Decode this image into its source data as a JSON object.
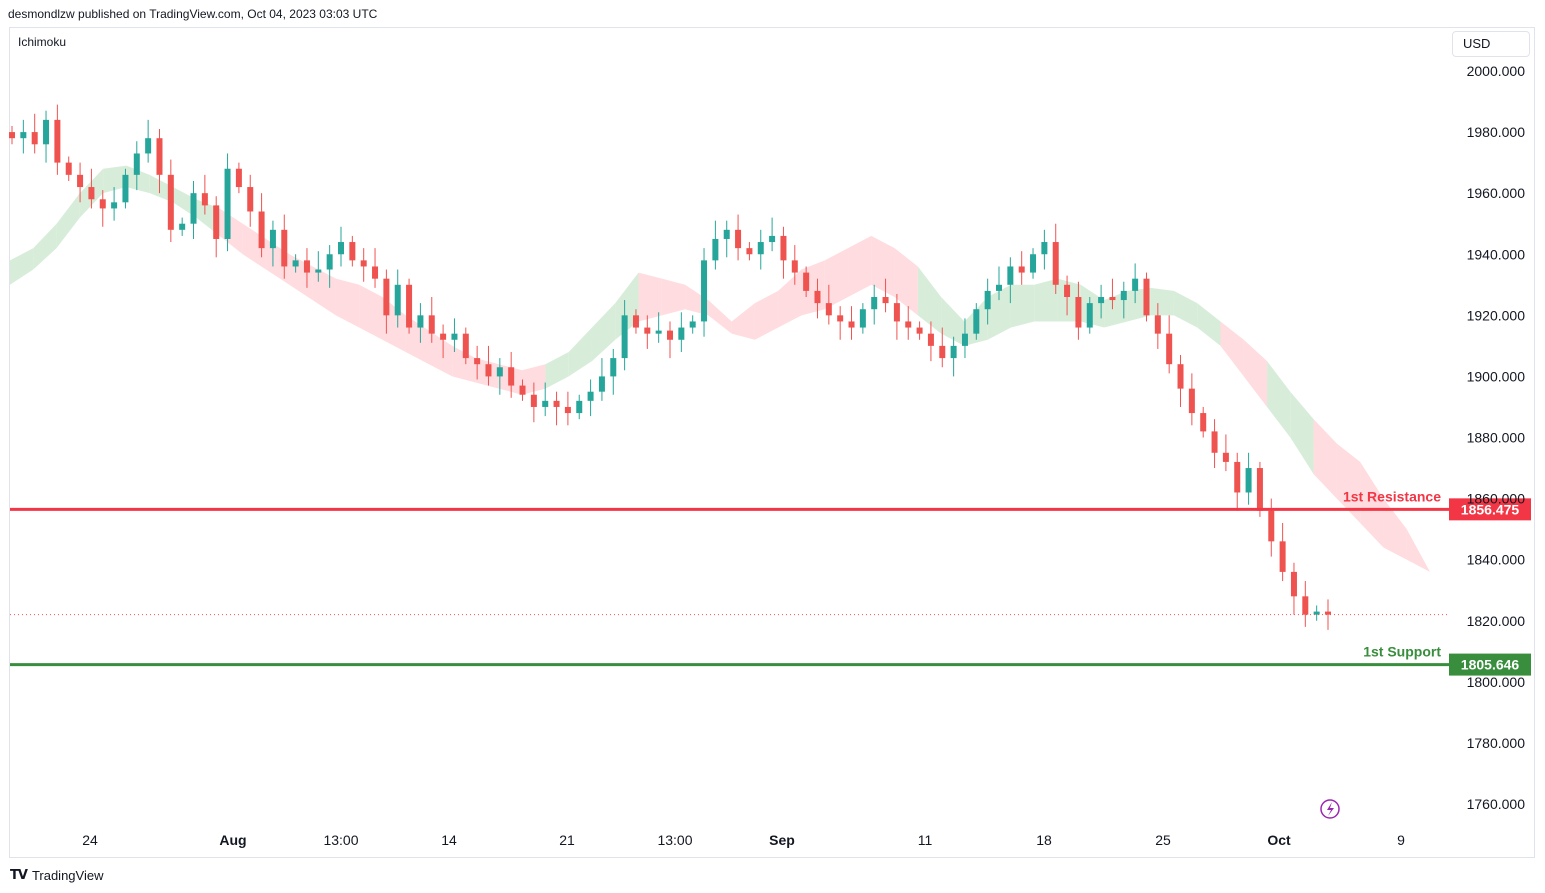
{
  "header": {
    "publisher": "desmondlzw published on TradingView.com, Oct 04, 2023 03:03 UTC"
  },
  "indicator_label": "Ichimoku",
  "currency": "USD",
  "footer": {
    "brand": "TradingView"
  },
  "colors": {
    "up": "#26a69a",
    "down": "#ef5350",
    "resistance": "#f23645",
    "support": "#388e3c",
    "cloud_bull": "#c8e6c9",
    "cloud_bear": "#ffcdd2"
  },
  "chart_data": {
    "type": "candlestick",
    "ylim": [
      1752,
      2012
    ],
    "yticks": [
      2000,
      1980,
      1960,
      1940,
      1920,
      1900,
      1880,
      1860,
      1840,
      1820,
      1800,
      1780,
      1760
    ],
    "ytick_labels": [
      "2000.000",
      "1980.000",
      "1960.000",
      "1940.000",
      "1920.000",
      "1900.000",
      "1880.000",
      "1860.000",
      "1840.000",
      "1820.000",
      "1800.000",
      "1780.000",
      "1760.000"
    ],
    "xtick_labels": [
      {
        "label": "24",
        "bold": false
      },
      {
        "label": "Aug",
        "bold": true
      },
      {
        "label": "13:00",
        "bold": false
      },
      {
        "label": "14",
        "bold": false
      },
      {
        "label": "21",
        "bold": false
      },
      {
        "label": "13:00",
        "bold": false
      },
      {
        "label": "Sep",
        "bold": true
      },
      {
        "label": "11",
        "bold": false
      },
      {
        "label": "18",
        "bold": false
      },
      {
        "label": "25",
        "bold": false
      },
      {
        "label": "Oct",
        "bold": true
      },
      {
        "label": "9",
        "bold": false
      }
    ],
    "close_path": [
      1978,
      1980,
      1976,
      1984,
      1970,
      1966,
      1962,
      1958,
      1955,
      1957,
      1966,
      1973,
      1978,
      1966,
      1948,
      1950,
      1960,
      1956,
      1945,
      1968,
      1962,
      1954,
      1942,
      1948,
      1936,
      1938,
      1934,
      1935,
      1940,
      1944,
      1938,
      1936,
      1932,
      1920,
      1930,
      1916,
      1920,
      1914,
      1912,
      1914,
      1906,
      1904,
      1900,
      1903,
      1897,
      1894,
      1890,
      1892,
      1890,
      1888,
      1892,
      1895,
      1900,
      1906,
      1920,
      1916,
      1914,
      1915,
      1912,
      1916,
      1918,
      1938,
      1945,
      1948,
      1942,
      1940,
      1944,
      1946,
      1938,
      1934,
      1928,
      1924,
      1920,
      1918,
      1916,
      1922,
      1926,
      1924,
      1918,
      1916,
      1914,
      1910,
      1906,
      1910,
      1914,
      1922,
      1928,
      1930,
      1936,
      1934,
      1940,
      1944,
      1930,
      1926,
      1916,
      1924,
      1926,
      1925,
      1928,
      1932,
      1920,
      1914,
      1904,
      1896,
      1888,
      1882,
      1875,
      1872,
      1862,
      1870,
      1856,
      1846,
      1836,
      1828,
      1822,
      1823,
      1822
    ],
    "levels": [
      {
        "name": "1st Resistance",
        "value": 1856.475,
        "tag": "1856.475"
      },
      {
        "name": "1st Support",
        "value": 1805.646,
        "tag": "1805.646"
      }
    ],
    "last_price": 1822,
    "cloud": {
      "upper": [
        1938,
        1942,
        1950,
        1960,
        1968,
        1969,
        1966,
        1962,
        1958,
        1955,
        1950,
        1945,
        1940,
        1936,
        1932,
        1930,
        1926,
        1920,
        1915,
        1910,
        1906,
        1904,
        1902,
        1904,
        1908,
        1916,
        1924,
        1934,
        1932,
        1930,
        1925,
        1918,
        1924,
        1928,
        1935,
        1938,
        1942,
        1946,
        1942,
        1936,
        1926,
        1918,
        1926,
        1930,
        1930,
        1932,
        1930,
        1925,
        1928,
        1929,
        1928,
        1924,
        1918,
        1912,
        1905,
        1895,
        1886,
        1878,
        1872,
        1860,
        1850,
        1836
      ],
      "lower": [
        1930,
        1935,
        1942,
        1952,
        1960,
        1962,
        1960,
        1957,
        1952,
        1946,
        1940,
        1935,
        1930,
        1925,
        1920,
        1916,
        1912,
        1908,
        1904,
        1900,
        1898,
        1896,
        1894,
        1896,
        1900,
        1905,
        1912,
        1918,
        1920,
        1922,
        1920,
        1914,
        1912,
        1916,
        1920,
        1922,
        1926,
        1930,
        1926,
        1920,
        1914,
        1910,
        1912,
        1916,
        1918,
        1918,
        1918,
        1916,
        1918,
        1920,
        1920,
        1916,
        1910,
        1900,
        1890,
        1880,
        1868,
        1860,
        1852,
        1844,
        1840,
        1836
      ]
    }
  }
}
